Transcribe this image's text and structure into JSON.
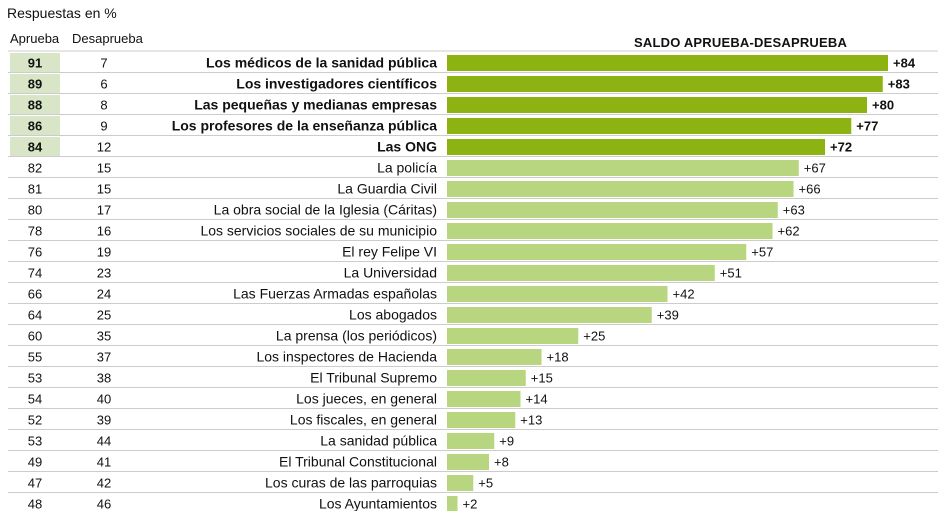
{
  "subtitle": "Respuestas en %",
  "headers": {
    "aprueba": "Aprueba",
    "desaprueba": "Desaprueba",
    "saldo": "SALDO APRUEBA-DESAPRUEBA"
  },
  "colors": {
    "bar_top": "#8db312",
    "bar_rest": "#b8d67f",
    "aprueba_highlight": "#d8e6c7",
    "row_line": "#cccccc"
  },
  "chart_data": {
    "type": "bar",
    "title": "SALDO APRUEBA-DESAPRUEBA",
    "subtitle": "Respuestas en %",
    "rows": [
      {
        "label": "Los médicos de la sanidad pública",
        "aprueba": 91,
        "desaprueba": 7,
        "saldo": 84,
        "saldo_label": "+84",
        "highlight": true
      },
      {
        "label": "Los investigadores científicos",
        "aprueba": 89,
        "desaprueba": 6,
        "saldo": 83,
        "saldo_label": "+83",
        "highlight": true
      },
      {
        "label": "Las pequeñas y medianas empresas",
        "aprueba": 88,
        "desaprueba": 8,
        "saldo": 80,
        "saldo_label": "+80",
        "highlight": true
      },
      {
        "label": "Los profesores de la enseñanza pública",
        "aprueba": 86,
        "desaprueba": 9,
        "saldo": 77,
        "saldo_label": "+77",
        "highlight": true
      },
      {
        "label": "Las ONG",
        "aprueba": 84,
        "desaprueba": 12,
        "saldo": 72,
        "saldo_label": "+72",
        "highlight": true
      },
      {
        "label": "La policía",
        "aprueba": 82,
        "desaprueba": 15,
        "saldo": 67,
        "saldo_label": "+67",
        "highlight": false
      },
      {
        "label": "La Guardia Civil",
        "aprueba": 81,
        "desaprueba": 15,
        "saldo": 66,
        "saldo_label": "+66",
        "highlight": false
      },
      {
        "label": "La obra social de la Iglesia (Cáritas)",
        "aprueba": 80,
        "desaprueba": 17,
        "saldo": 63,
        "saldo_label": "+63",
        "highlight": false
      },
      {
        "label": "Los servicios sociales de su municipio",
        "aprueba": 78,
        "desaprueba": 16,
        "saldo": 62,
        "saldo_label": "+62",
        "highlight": false
      },
      {
        "label": "El rey Felipe VI",
        "aprueba": 76,
        "desaprueba": 19,
        "saldo": 57,
        "saldo_label": "+57",
        "highlight": false
      },
      {
        "label": "La Universidad",
        "aprueba": 74,
        "desaprueba": 23,
        "saldo": 51,
        "saldo_label": "+51",
        "highlight": false
      },
      {
        "label": "Las Fuerzas Armadas españolas",
        "aprueba": 66,
        "desaprueba": 24,
        "saldo": 42,
        "saldo_label": "+42",
        "highlight": false
      },
      {
        "label": "Los abogados",
        "aprueba": 64,
        "desaprueba": 25,
        "saldo": 39,
        "saldo_label": "+39",
        "highlight": false
      },
      {
        "label": "La prensa (los periódicos)",
        "aprueba": 60,
        "desaprueba": 35,
        "saldo": 25,
        "saldo_label": "+25",
        "highlight": false
      },
      {
        "label": "Los inspectores de Hacienda",
        "aprueba": 55,
        "desaprueba": 37,
        "saldo": 18,
        "saldo_label": "+18",
        "highlight": false
      },
      {
        "label": "El Tribunal Supremo",
        "aprueba": 53,
        "desaprueba": 38,
        "saldo": 15,
        "saldo_label": "+15",
        "highlight": false
      },
      {
        "label": "Los jueces, en general",
        "aprueba": 54,
        "desaprueba": 40,
        "saldo": 14,
        "saldo_label": "+14",
        "highlight": false
      },
      {
        "label": "Los fiscales, en general",
        "aprueba": 52,
        "desaprueba": 39,
        "saldo": 13,
        "saldo_label": "+13",
        "highlight": false
      },
      {
        "label": "La sanidad pública",
        "aprueba": 53,
        "desaprueba": 44,
        "saldo": 9,
        "saldo_label": "+9",
        "highlight": false
      },
      {
        "label": "El Tribunal Constitucional",
        "aprueba": 49,
        "desaprueba": 41,
        "saldo": 8,
        "saldo_label": "+8",
        "highlight": false
      },
      {
        "label": "Los curas de las parroquias",
        "aprueba": 47,
        "desaprueba": 42,
        "saldo": 5,
        "saldo_label": "+5",
        "highlight": false
      },
      {
        "label": "Los Ayuntamientos",
        "aprueba": 48,
        "desaprueba": 46,
        "saldo": 2,
        "saldo_label": "+2",
        "highlight": false
      }
    ],
    "xlim": [
      0,
      100
    ],
    "grid": false,
    "legend": "none"
  }
}
